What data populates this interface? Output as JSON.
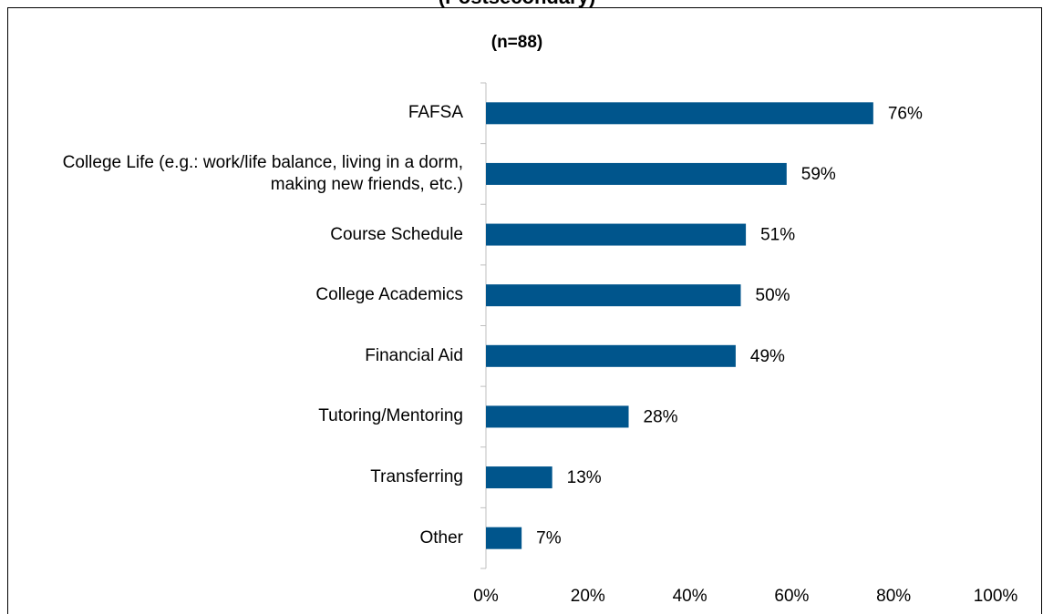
{
  "chart_data": {
    "type": "barh",
    "title": "(Postsecondary)",
    "subtitle": "(n=88)",
    "categories": [
      "FAFSA",
      "College Life (e.g.: work/life balance, living in a dorm, making new friends, etc.)",
      "Course Schedule",
      "College Academics",
      "Financial Aid",
      "Tutoring/Mentoring",
      "Transferring",
      "Other"
    ],
    "values": [
      76,
      59,
      51,
      50,
      49,
      28,
      13,
      7
    ],
    "value_labels": [
      "76%",
      "59%",
      "51%",
      "50%",
      "49%",
      "28%",
      "13%",
      "7%"
    ],
    "color": "#00558c",
    "xlim": [
      0,
      100
    ],
    "xticks": [
      {
        "value": 0,
        "label": "0%"
      },
      {
        "value": 20,
        "label": "20%"
      },
      {
        "value": 40,
        "label": "40%"
      },
      {
        "value": 60,
        "label": "60%"
      },
      {
        "value": 80,
        "label": "80%"
      },
      {
        "value": 100,
        "label": "100%"
      }
    ],
    "grid": false
  }
}
